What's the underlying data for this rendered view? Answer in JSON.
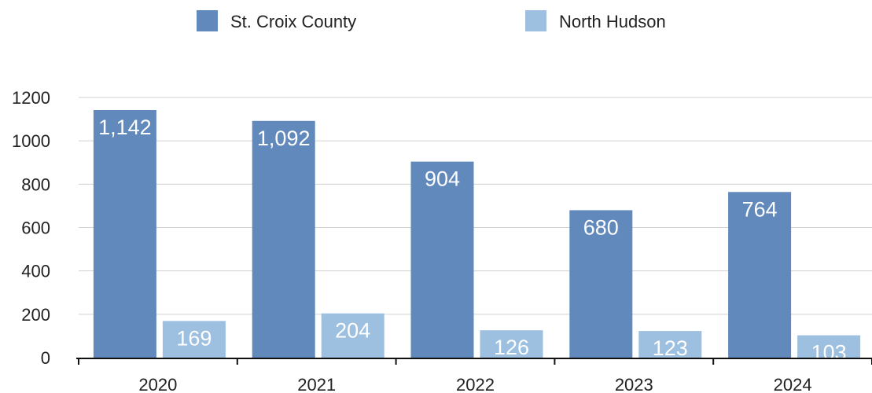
{
  "chart_data": {
    "type": "bar",
    "title": "",
    "xlabel": "",
    "ylabel": "",
    "categories": [
      "2020",
      "2021",
      "2022",
      "2023",
      "2024"
    ],
    "series": [
      {
        "name": "St. Croix County",
        "color": "#6189bb",
        "values": [
          1142,
          1092,
          904,
          680,
          764
        ]
      },
      {
        "name": "North Hudson",
        "color": "#9dbfe0",
        "values": [
          169,
          204,
          126,
          123,
          103
        ]
      }
    ],
    "value_labels": [
      [
        "1,142",
        "1,092",
        "904",
        "680",
        "764"
      ],
      [
        "169",
        "204",
        "126",
        "123",
        "103"
      ]
    ],
    "ylim": [
      0,
      1200
    ],
    "yticks": [
      "0",
      "200",
      "400",
      "600",
      "800",
      "1000",
      "1200"
    ],
    "grid": true,
    "legend_position": "top-center"
  }
}
